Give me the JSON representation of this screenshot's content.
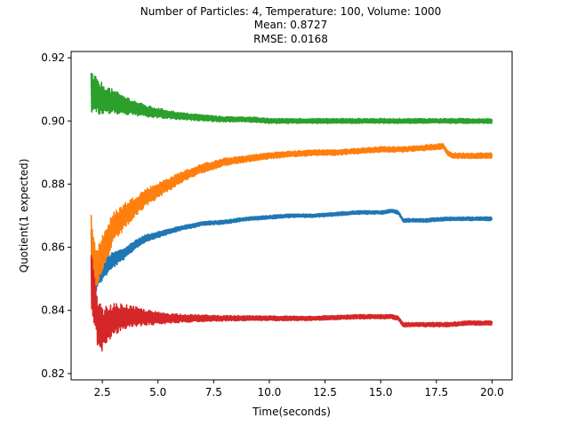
{
  "chart_data": {
    "type": "line",
    "title_lines": [
      "Number of Particles: 4, Temperature: 100, Volume: 1000",
      "Mean: 0.8727",
      "RMSE: 0.0168"
    ],
    "xlabel": "Time(seconds)",
    "ylabel": "Quotient(1 expected)",
    "xlim": [
      1.1,
      20.9
    ],
    "ylim": [
      0.818,
      0.922
    ],
    "xticks": [
      2.5,
      5.0,
      7.5,
      10.0,
      12.5,
      15.0,
      17.5,
      20.0
    ],
    "xtick_labels": [
      "2.5",
      "5.0",
      "7.5",
      "10.0",
      "12.5",
      "15.0",
      "17.5",
      "20.0"
    ],
    "yticks": [
      0.82,
      0.84,
      0.86,
      0.88,
      0.9,
      0.92
    ],
    "ytick_labels": [
      "0.82",
      "0.84",
      "0.86",
      "0.88",
      "0.90",
      "0.92"
    ],
    "grid": false,
    "legend": "none",
    "series": [
      {
        "color": "#1f77b4",
        "x": [
          2.0,
          2.2,
          2.5,
          3.0,
          3.5,
          4.0,
          4.5,
          5.0,
          5.5,
          6.0,
          7.0,
          8.0,
          9.0,
          10.0,
          11.0,
          12.0,
          13.0,
          14.0,
          15.0,
          15.5,
          15.8,
          16.0,
          17.0,
          18.0,
          19.0,
          20.0
        ],
        "values": [
          0.861,
          0.85,
          0.853,
          0.856,
          0.858,
          0.861,
          0.863,
          0.864,
          0.865,
          0.866,
          0.8675,
          0.868,
          0.869,
          0.8695,
          0.87,
          0.87,
          0.8705,
          0.871,
          0.871,
          0.8715,
          0.871,
          0.8685,
          0.8685,
          0.869,
          0.869,
          0.869
        ]
      },
      {
        "color": "#ff7f0e",
        "x": [
          2.0,
          2.2,
          2.5,
          3.0,
          3.5,
          4.0,
          4.5,
          5.0,
          5.5,
          6.0,
          6.5,
          7.0,
          7.5,
          8.0,
          9.0,
          10.0,
          11.0,
          12.0,
          13.0,
          14.0,
          15.0,
          16.0,
          17.0,
          17.8,
          18.0,
          18.2,
          19.0,
          20.0
        ],
        "values": [
          0.864,
          0.852,
          0.858,
          0.866,
          0.87,
          0.873,
          0.876,
          0.878,
          0.88,
          0.882,
          0.8835,
          0.885,
          0.886,
          0.887,
          0.888,
          0.889,
          0.8895,
          0.89,
          0.89,
          0.8905,
          0.891,
          0.891,
          0.8915,
          0.892,
          0.89,
          0.889,
          0.889,
          0.889
        ]
      },
      {
        "color": "#2ca02c",
        "x": [
          2.0,
          2.2,
          2.5,
          3.0,
          3.5,
          4.0,
          4.5,
          5.0,
          5.5,
          6.0,
          7.0,
          8.0,
          9.0,
          10.0,
          12.0,
          14.0,
          16.0,
          18.0,
          20.0
        ],
        "values": [
          0.909,
          0.908,
          0.907,
          0.906,
          0.905,
          0.904,
          0.903,
          0.9025,
          0.902,
          0.9015,
          0.901,
          0.9005,
          0.9005,
          0.9,
          0.9,
          0.9,
          0.9,
          0.9,
          0.9
        ]
      },
      {
        "color": "#d62728",
        "x": [
          2.0,
          2.1,
          2.3,
          2.5,
          3.0,
          3.5,
          4.0,
          5.0,
          6.0,
          7.0,
          8.0,
          10.0,
          12.0,
          14.0,
          15.5,
          15.8,
          16.0,
          17.0,
          18.0,
          19.0,
          20.0
        ],
        "values": [
          0.85,
          0.845,
          0.836,
          0.834,
          0.837,
          0.838,
          0.838,
          0.8375,
          0.8375,
          0.8375,
          0.8375,
          0.8375,
          0.8375,
          0.838,
          0.838,
          0.8375,
          0.8355,
          0.8355,
          0.8355,
          0.836,
          0.836
        ]
      }
    ]
  }
}
